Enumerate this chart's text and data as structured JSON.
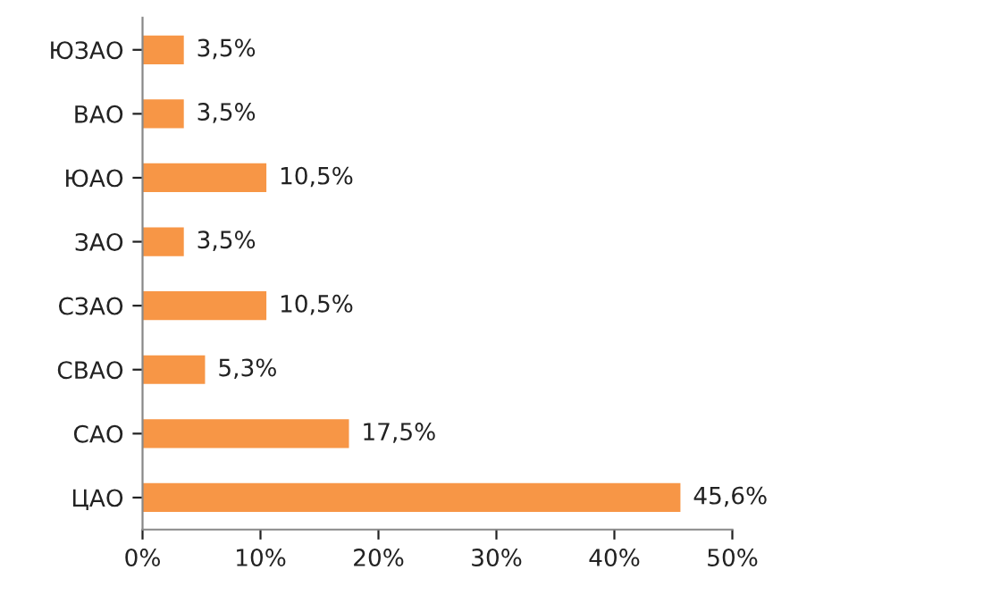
{
  "chart_data": {
    "type": "bar",
    "orientation": "horizontal",
    "categories": [
      "ЮЗАО",
      "ВАО",
      "ЮАО",
      "ЗАО",
      "СЗАО",
      "СВАО",
      "САО",
      "ЦАО"
    ],
    "values": [
      3.5,
      3.5,
      10.5,
      3.5,
      10.5,
      5.3,
      17.5,
      45.6
    ],
    "value_labels": [
      "3,5%",
      "3,5%",
      "10,5%",
      "3,5%",
      "10,5%",
      "5,3%",
      "17,5%",
      "45,6%"
    ],
    "color": "#f79646",
    "xlim": [
      0,
      50
    ],
    "xticks": [
      {
        "value": 0,
        "label": "0%"
      },
      {
        "value": 10,
        "label": "10%"
      },
      {
        "value": 20,
        "label": "20%"
      },
      {
        "value": 30,
        "label": "30%"
      },
      {
        "value": 40,
        "label": "40%"
      },
      {
        "value": 50,
        "label": "50%"
      }
    ],
    "grid": false,
    "legend": false
  }
}
